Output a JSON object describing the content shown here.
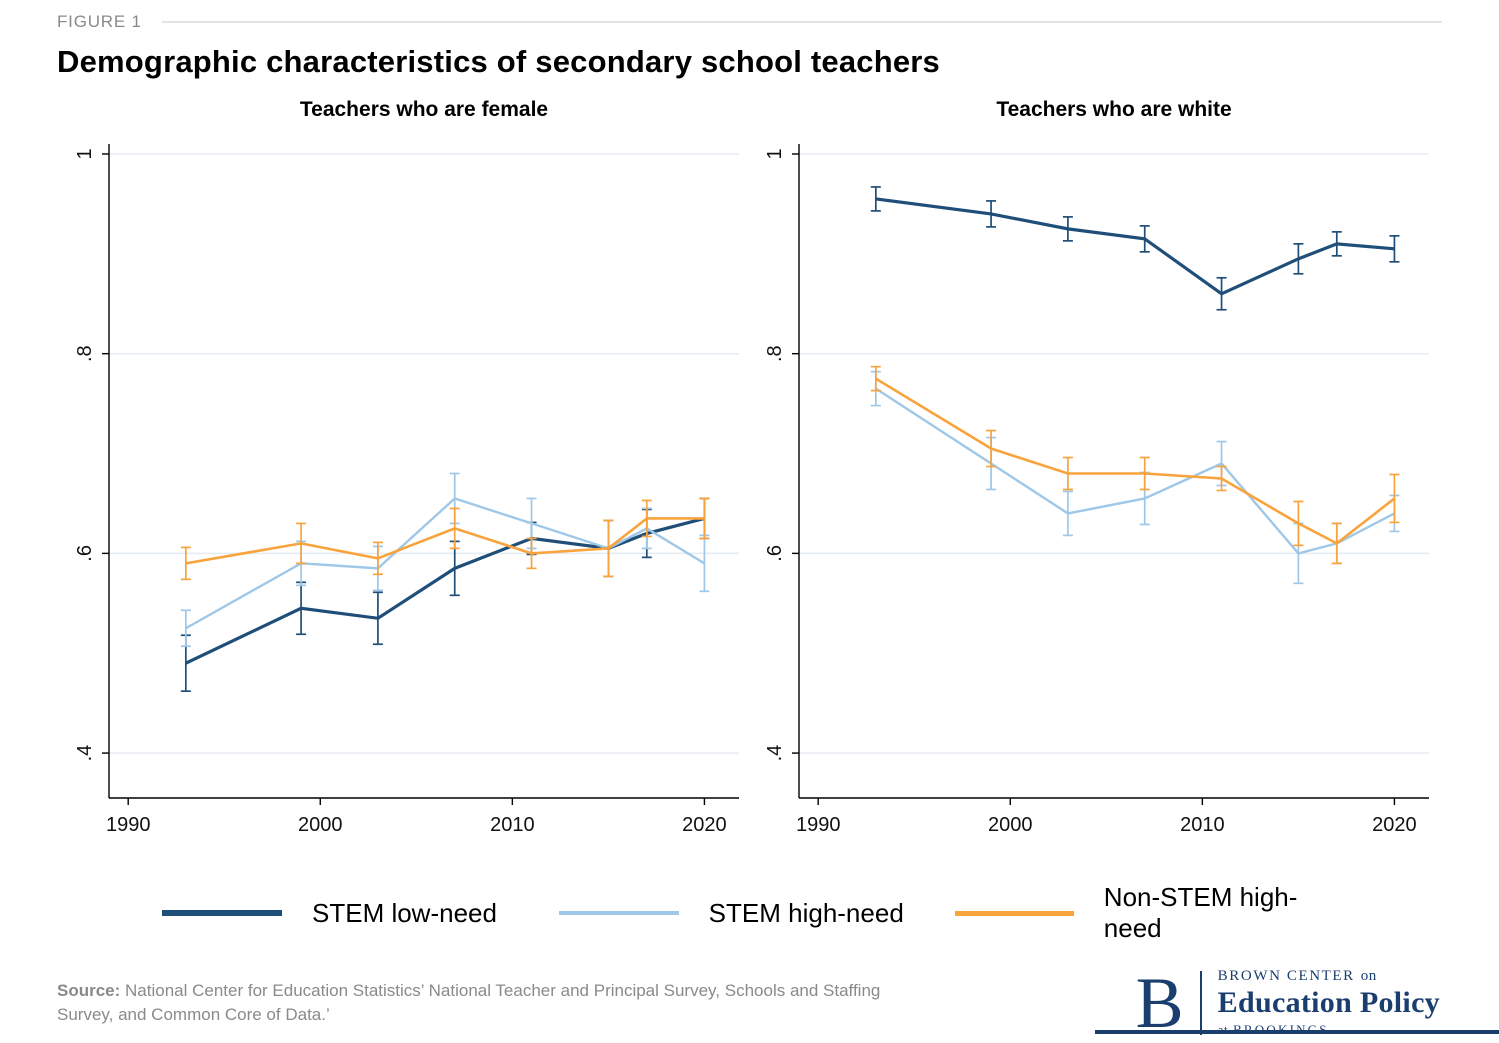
{
  "figure_label": "FIGURE 1",
  "title": "Demographic characteristics of secondary school teachers",
  "legend": [
    {
      "label": "STEM low-need",
      "color": "#1f4e79",
      "thickness": 6
    },
    {
      "label": "STEM high-need",
      "color": "#9ec7e8",
      "thickness": 4
    },
    {
      "label": "Non-STEM high-need",
      "color": "#f8a33c",
      "thickness": 5
    }
  ],
  "source": {
    "label": "Source:",
    "text": " National Center for Education Statistics’ National Teacher and Principal Survey, Schools and Staffing Survey, and Common Core of Data.’"
  },
  "logo": {
    "letter": "B",
    "center": "BROWN CENTER",
    "on": "on",
    "name": "Education Policy",
    "at": "at",
    "brookings": "BROOKINGS",
    "color": "#1a3e6e"
  },
  "chart_data": [
    {
      "type": "line",
      "title": "Teachers who are female",
      "x": [
        1993,
        1999,
        2003,
        2007,
        2011,
        2015,
        2017,
        2020
      ],
      "xlim": [
        1989,
        2021.8
      ],
      "ylim": [
        0.355,
        1.01
      ],
      "grid": true,
      "xticks": [
        {
          "value": 1990,
          "label": "1990"
        },
        {
          "value": 2000,
          "label": "2000"
        },
        {
          "value": 2010,
          "label": "2010"
        },
        {
          "value": 2020,
          "label": "2020"
        }
      ],
      "yticks": [
        {
          "value": 1,
          "label": "1"
        },
        {
          "value": 0.8,
          "label": ".8"
        },
        {
          "value": 0.6,
          "label": ".6"
        },
        {
          "value": 0.4,
          "label": ".4"
        }
      ],
      "series": [
        {
          "name": "STEM low-need",
          "color": "#1f4e79",
          "width": 3.2,
          "values": [
            0.49,
            0.545,
            0.535,
            0.585,
            0.615,
            0.605,
            0.62,
            0.635
          ],
          "errors": [
            0.028,
            0.026,
            0.026,
            0.027,
            0.016,
            0.028,
            0.024,
            0.02
          ]
        },
        {
          "name": "STEM high-need",
          "color": "#9ec7e8",
          "width": 2.4,
          "values": [
            0.525,
            0.59,
            0.585,
            0.655,
            0.63,
            0.605,
            0.625,
            0.59
          ],
          "errors": [
            0.018,
            0.022,
            0.022,
            0.025,
            0.025,
            0.028,
            0.02,
            0.028
          ]
        },
        {
          "name": "Non-STEM high-need",
          "color": "#f8a33c",
          "width": 2.6,
          "values": [
            0.59,
            0.61,
            0.595,
            0.625,
            0.6,
            0.605,
            0.635,
            0.635
          ],
          "errors": [
            0.016,
            0.02,
            0.016,
            0.02,
            0.015,
            0.028,
            0.018,
            0.02
          ]
        }
      ]
    },
    {
      "type": "line",
      "title": "Teachers who are white",
      "x": [
        1993,
        1999,
        2003,
        2007,
        2011,
        2015,
        2017,
        2020
      ],
      "xlim": [
        1989,
        2021.8
      ],
      "ylim": [
        0.355,
        1.01
      ],
      "grid": true,
      "xticks": [
        {
          "value": 1990,
          "label": "1990"
        },
        {
          "value": 2000,
          "label": "2000"
        },
        {
          "value": 2010,
          "label": "2010"
        },
        {
          "value": 2020,
          "label": "2020"
        }
      ],
      "yticks": [
        {
          "value": 1,
          "label": "1"
        },
        {
          "value": 0.8,
          "label": ".8"
        },
        {
          "value": 0.6,
          "label": ".6"
        },
        {
          "value": 0.4,
          "label": ".4"
        }
      ],
      "series": [
        {
          "name": "STEM low-need",
          "color": "#1f4e79",
          "width": 3.2,
          "values": [
            0.955,
            0.94,
            0.925,
            0.915,
            0.86,
            0.895,
            0.91,
            0.905
          ],
          "errors": [
            0.012,
            0.013,
            0.012,
            0.013,
            0.016,
            0.015,
            0.012,
            0.013
          ]
        },
        {
          "name": "STEM high-need",
          "color": "#9ec7e8",
          "width": 2.4,
          "values": [
            0.765,
            0.69,
            0.64,
            0.655,
            0.69,
            0.6,
            0.61,
            0.64
          ],
          "errors": [
            0.017,
            0.026,
            0.022,
            0.026,
            0.022,
            0.03,
            0.02,
            0.018
          ]
        },
        {
          "name": "Non-STEM high-need",
          "color": "#f8a33c",
          "width": 2.6,
          "values": [
            0.775,
            0.705,
            0.68,
            0.68,
            0.675,
            0.63,
            0.61,
            0.655
          ],
          "errors": [
            0.012,
            0.018,
            0.016,
            0.016,
            0.012,
            0.022,
            0.02,
            0.024
          ]
        }
      ]
    }
  ]
}
